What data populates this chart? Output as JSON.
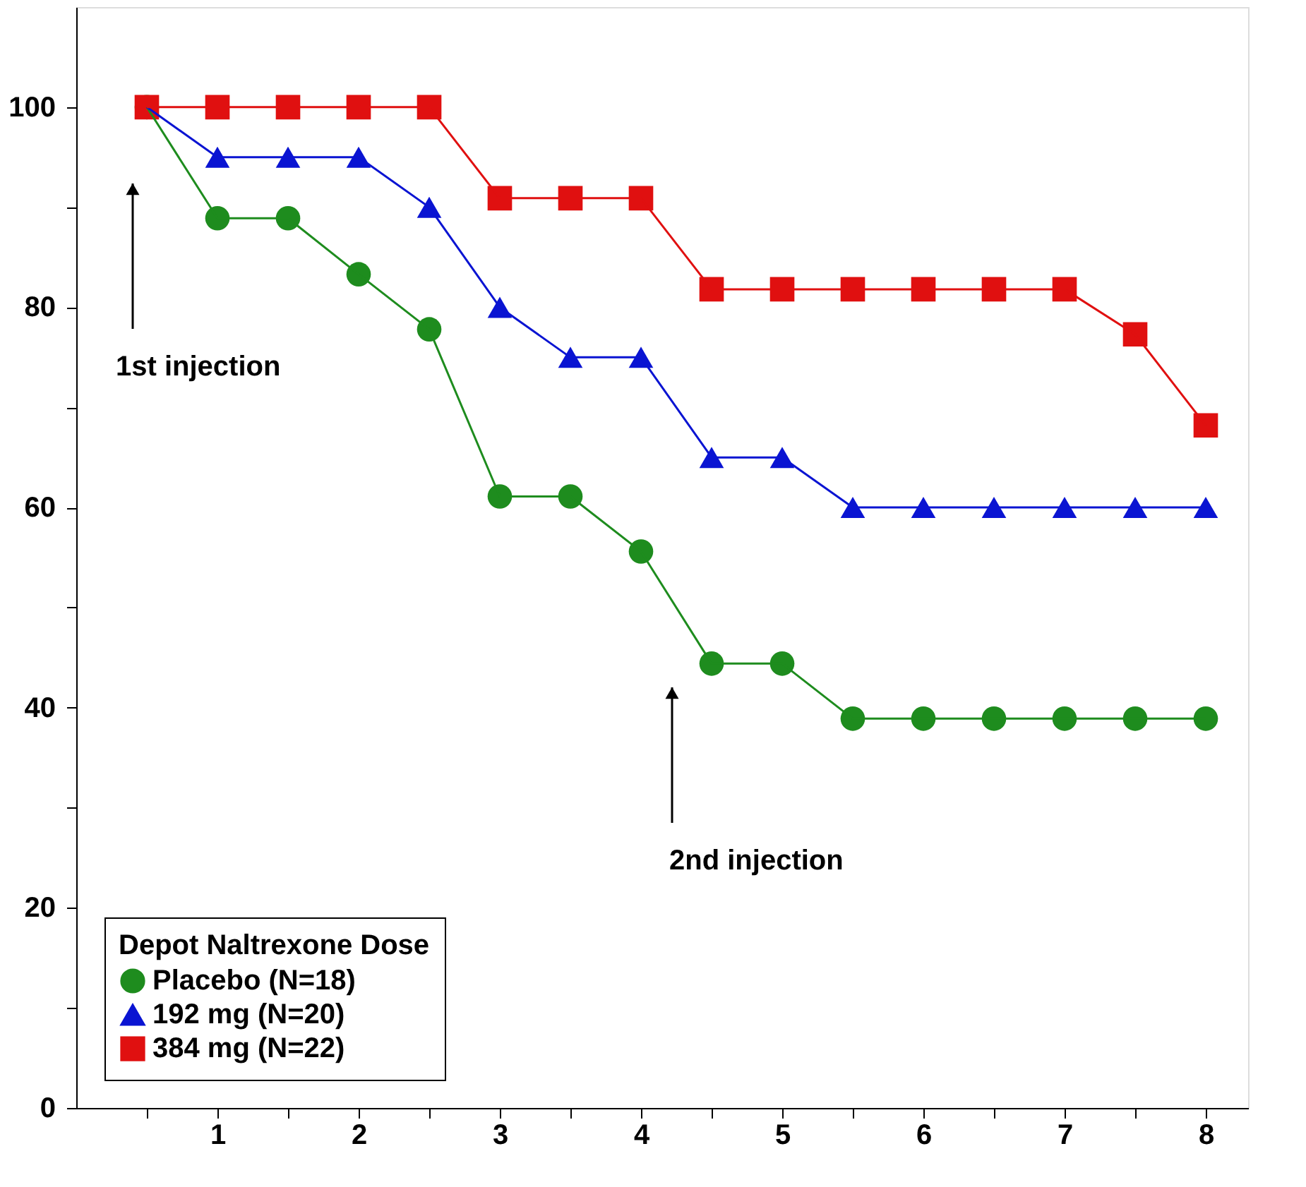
{
  "chart_data": {
    "type": "line",
    "x": [
      0.5,
      1,
      1.5,
      2,
      2.5,
      3,
      3.5,
      4,
      4.5,
      5,
      5.5,
      6,
      6.5,
      7,
      7.5,
      8
    ],
    "series": [
      {
        "name": "Placebo (N=18)",
        "color": "#1e8c1e",
        "marker": "circle",
        "values": [
          100,
          88.9,
          88.9,
          83.3,
          77.8,
          61.1,
          61.1,
          55.6,
          44.4,
          44.4,
          38.9,
          38.9,
          38.9,
          38.9,
          38.9,
          38.9
        ]
      },
      {
        "name": "192 mg (N=20)",
        "color": "#0a14d2",
        "marker": "triangle",
        "values": [
          100,
          95,
          95,
          95,
          90,
          80,
          75,
          75,
          65,
          65,
          60,
          60,
          60,
          60,
          60,
          60
        ]
      },
      {
        "name": "384 mg (N=22)",
        "color": "#e01010",
        "marker": "square",
        "values": [
          100,
          100,
          100,
          100,
          100,
          90.9,
          90.9,
          90.9,
          81.8,
          81.8,
          81.8,
          81.8,
          81.8,
          81.8,
          77.3,
          68.2
        ]
      }
    ],
    "xlim": [
      0,
      8.3
    ],
    "xticks": [
      {
        "value": 0.5,
        "label": null
      },
      1,
      {
        "value": 1.5,
        "label": null
      },
      2,
      {
        "value": 2.5,
        "label": null
      },
      3,
      {
        "value": 3.5,
        "label": null
      },
      4,
      {
        "value": 4.5,
        "label": null
      },
      5,
      {
        "value": 5.5,
        "label": null
      },
      6,
      {
        "value": 6.5,
        "label": null
      },
      7,
      {
        "value": 7.5,
        "label": null
      },
      8
    ],
    "ylim": [
      0,
      110
    ],
    "yticks": [
      0,
      {
        "value": 10,
        "label": null
      },
      20,
      {
        "value": 30,
        "label": null
      },
      40,
      {
        "value": 50,
        "label": null
      },
      60,
      {
        "value": 70,
        "label": null
      },
      80,
      {
        "value": 90,
        "label": null
      },
      100
    ],
    "annotations": [
      "1st injection",
      "2nd injection"
    ],
    "legend_title": "Depot Naltrexone Dose",
    "legend": "bottom left",
    "grid": false
  }
}
